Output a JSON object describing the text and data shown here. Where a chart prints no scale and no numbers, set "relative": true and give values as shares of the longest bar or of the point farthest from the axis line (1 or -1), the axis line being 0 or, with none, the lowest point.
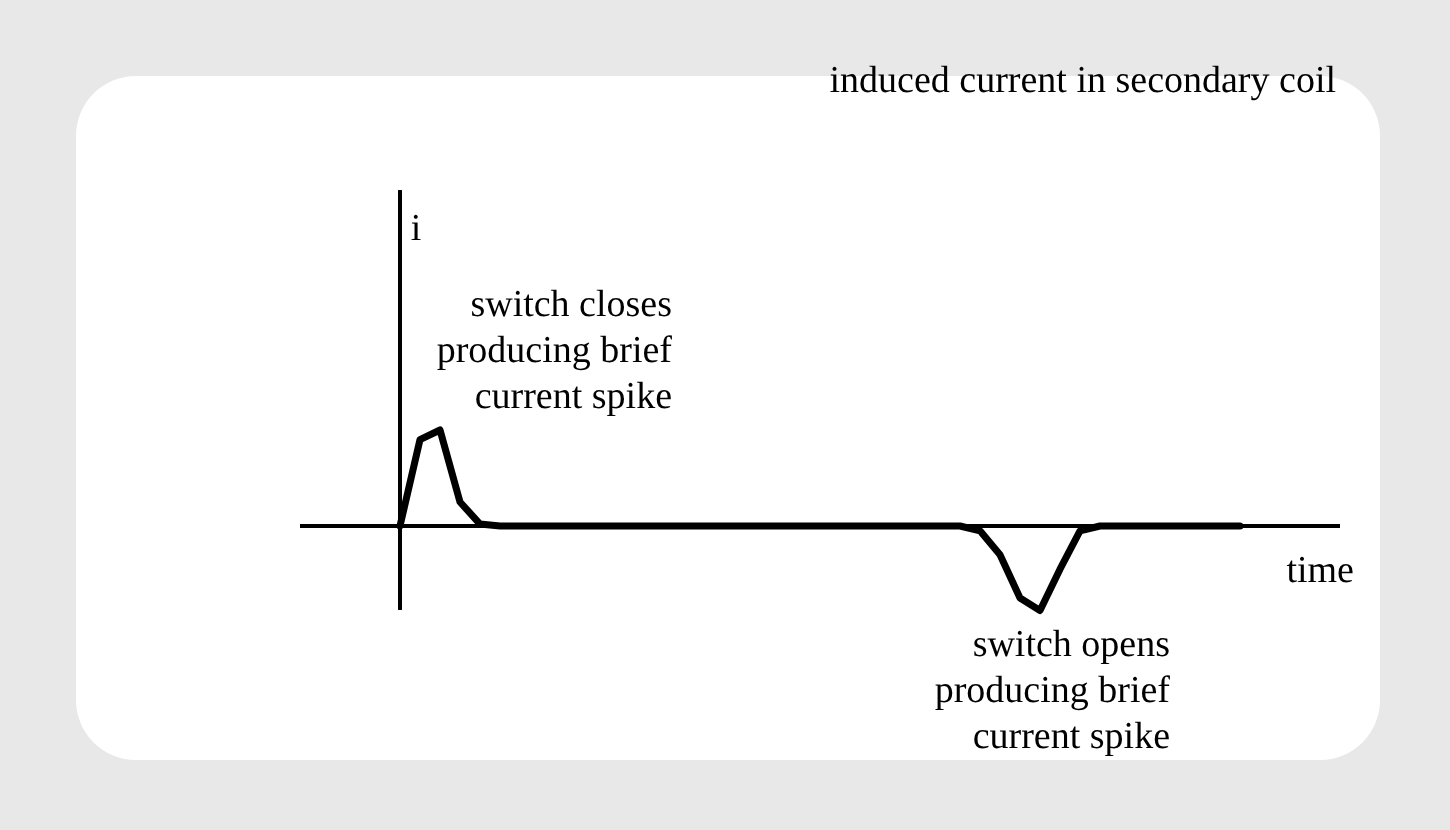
{
  "chart_data": {
    "type": "line",
    "relative": true,
    "title": "induced current in secondary coil",
    "xlabel": "time",
    "ylabel": "i",
    "annotations": [
      "switch closes\nproducing brief\ncurrent spike",
      "switch opens\nproducing brief\ncurrent spike"
    ],
    "categories": [
      null,
      null,
      null,
      null,
      null,
      null,
      null,
      null,
      null,
      null,
      null,
      null,
      null,
      null,
      null,
      null,
      null,
      null,
      null,
      null,
      null,
      null,
      null,
      null,
      null,
      null,
      null,
      null,
      null,
      null,
      null,
      null,
      null,
      null,
      null,
      null,
      null,
      null,
      null,
      null,
      null,
      null,
      null
    ],
    "series": [
      {
        "color": "#000000",
        "values": [
          0,
          0.9,
          1,
          0.25,
          0.02,
          0,
          0,
          0,
          0,
          0,
          0,
          0,
          0,
          0,
          0,
          0,
          0,
          0,
          0,
          0,
          0,
          0,
          0,
          0,
          0,
          0,
          0,
          0,
          0,
          -0.05,
          -0.3,
          -0.75,
          -0.88,
          -0.45,
          -0.05,
          0,
          0,
          0,
          0,
          0,
          0,
          0,
          0
        ]
      }
    ],
    "marker": "none",
    "line_style": "solid"
  }
}
